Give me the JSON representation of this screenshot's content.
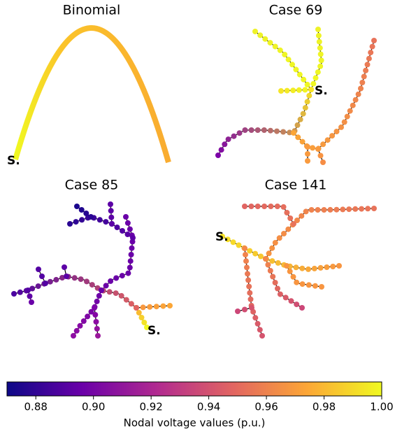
{
  "chart_data": {
    "type": "network-colorbar",
    "panels": [
      {
        "title": "Binomial",
        "source_label": "S."
      },
      {
        "title": "Case 69",
        "source_label": "S."
      },
      {
        "title": "Case 85",
        "source_label": "S."
      },
      {
        "title": "Case 141",
        "source_label": "S."
      }
    ],
    "colorbar": {
      "label": "Nodal voltage values (p.u.)",
      "colormap": "plasma",
      "xlim": [
        0.87,
        1.0
      ],
      "xticks": [
        0.88,
        {
          "value": 0.9,
          "label": "0.90"
        },
        0.92,
        0.94,
        0.96,
        0.98,
        {
          "value": 1,
          "label": "1.00"
        }
      ]
    }
  }
}
